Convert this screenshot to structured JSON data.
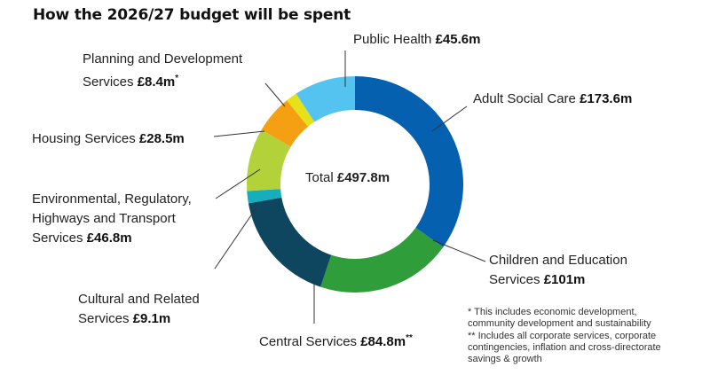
{
  "chart_data": {
    "type": "pie",
    "title": "How the 2026/27 budget will be spent",
    "center_label": "Total",
    "center_value": "£497.8m",
    "slices": [
      {
        "name": "Adult Social Care",
        "display": "£173.6m",
        "value": 173.6,
        "color": "#0561b0"
      },
      {
        "name": "Children and Education Services",
        "display": "£101m",
        "value": 101.0,
        "color": "#2f9d3a"
      },
      {
        "name": "Central Services",
        "display": "£84.8m",
        "value": 84.8,
        "marker": "**",
        "color": "#0e4660"
      },
      {
        "name": "Cultural and Related Services",
        "display": "£9.1m",
        "value": 9.1,
        "color": "#16aebd"
      },
      {
        "name": "Environmental, Regulatory, Highways and Transport Services",
        "display": "£46.8m",
        "value": 46.8,
        "color": "#b3d23a"
      },
      {
        "name": "Housing Services",
        "display": "£28.5m",
        "value": 28.5,
        "color": "#f59f12"
      },
      {
        "name": "Planning and Development Services",
        "display": "£8.4m",
        "value": 8.4,
        "marker": "*",
        "color": "#e6e21a"
      },
      {
        "name": "Public Health",
        "display": "£45.6m",
        "value": 45.6,
        "color": "#55c3ef"
      }
    ]
  },
  "labels": {
    "public_health": {
      "text": "Public Health ",
      "value": "£45.6m"
    },
    "adult_social_care": {
      "text": "Adult Social Care ",
      "value": "£173.6m"
    },
    "planning": {
      "line1": "Planning and Development",
      "line2": "Services ",
      "value": "£8.4m",
      "marker": "*"
    },
    "housing": {
      "text": "Housing Services ",
      "value": "£28.5m"
    },
    "environmental": {
      "line1": "Environmental, Regulatory,",
      "line2": "Highways and Transport",
      "line3": "Services ",
      "value": "£46.8m"
    },
    "children": {
      "line1": "Children and Education",
      "line2": "Services ",
      "value": "£101m"
    },
    "cultural": {
      "line1": "Cultural and Related",
      "line2": "Services ",
      "value": "£9.1m"
    },
    "central": {
      "text": "Central Services ",
      "value": "£84.8m",
      "marker": "**"
    }
  },
  "footnotes": [
    "* This includes economic development,",
    "community development and sustainability",
    "** Includes all corporate services, corporate",
    "contingencies, inflation and cross-directorate",
    "savings & growth"
  ]
}
